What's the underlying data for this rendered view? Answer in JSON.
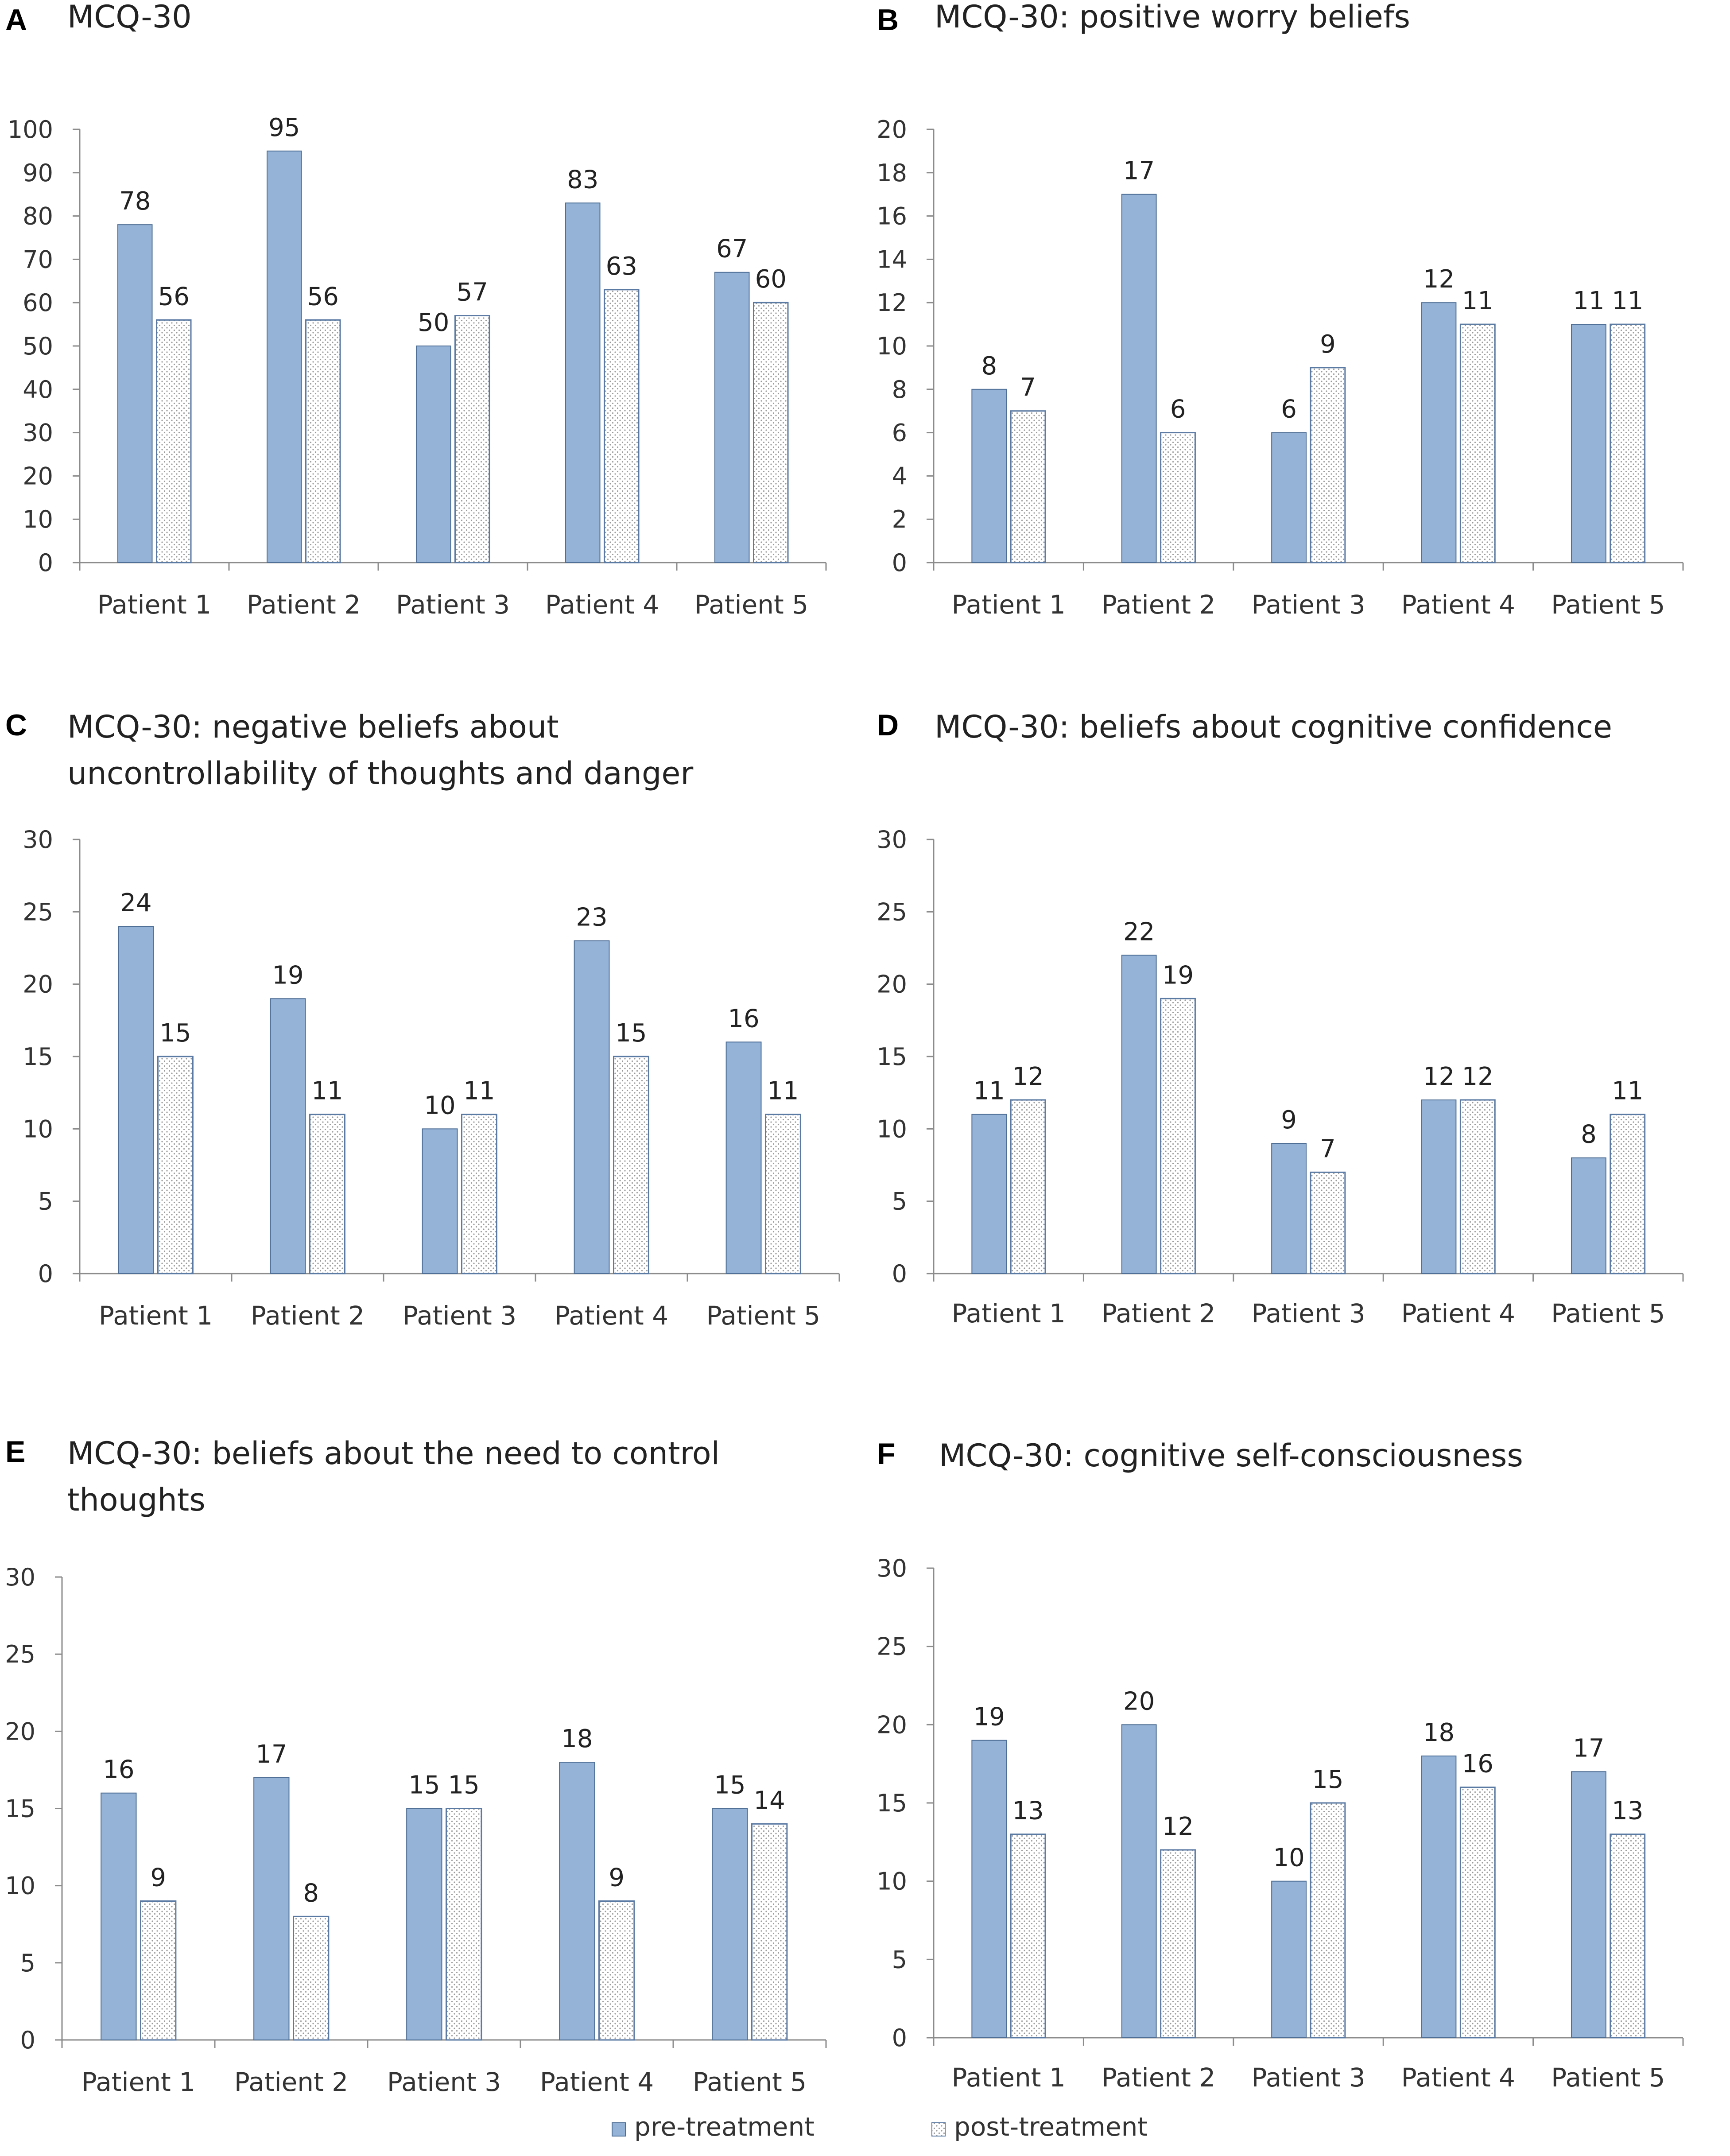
{
  "legend": {
    "pre_label": "pre-treatment",
    "post_label": "post-treatment"
  },
  "colors": {
    "pre": "#95b3d7",
    "pre_stroke": "#4f6f96",
    "post_fill": "#ffffff",
    "post_dots": "#9a9a9a",
    "post_stroke": "#5b7aa3",
    "axis": "#8c8c8c"
  },
  "chart_data": [
    {
      "panel": "A",
      "type": "bar",
      "title": [
        "MCQ-30"
      ],
      "categories": [
        "Patient 1",
        "Patient 2",
        "Patient 3",
        "Patient 4",
        "Patient 5"
      ],
      "series": [
        {
          "name": "pre-treatment",
          "values": [
            78,
            95,
            50,
            83,
            67
          ]
        },
        {
          "name": "post-treatment",
          "values": [
            56,
            56,
            57,
            63,
            60
          ]
        }
      ],
      "ylim": [
        0,
        100
      ],
      "ystep": 10,
      "ticks": [
        "0",
        "10",
        "20",
        "30",
        "40",
        "50",
        "60",
        "70",
        "80",
        "90",
        "100"
      ]
    },
    {
      "panel": "B",
      "type": "bar",
      "title": [
        "MCQ-30: positive worry beliefs"
      ],
      "categories": [
        "Patient 1",
        "Patient 2",
        "Patient 3",
        "Patient 4",
        "Patient 5"
      ],
      "series": [
        {
          "name": "pre-treatment",
          "values": [
            8,
            17,
            6,
            12,
            11
          ]
        },
        {
          "name": "post-treatment",
          "values": [
            7,
            6,
            9,
            11,
            11
          ]
        }
      ],
      "ylim": [
        0,
        20
      ],
      "ystep": 2,
      "ticks": [
        "0",
        "2",
        "4",
        "6",
        "8",
        "10",
        "12",
        "14",
        "16",
        "18",
        "20"
      ]
    },
    {
      "panel": "C",
      "type": "bar",
      "title": [
        "MCQ-30: negative beliefs about",
        "uncontrollability of thoughts and danger"
      ],
      "categories": [
        "Patient 1",
        "Patient 2",
        "Patient 3",
        "Patient 4",
        "Patient 5"
      ],
      "series": [
        {
          "name": "pre-treatment",
          "values": [
            24,
            19,
            10,
            23,
            16
          ]
        },
        {
          "name": "post-treatment",
          "values": [
            15,
            11,
            11,
            15,
            11
          ]
        }
      ],
      "ylim": [
        0,
        30
      ],
      "ystep": 5,
      "ticks": [
        "0",
        "5",
        "10",
        "15",
        "20",
        "25",
        "30"
      ]
    },
    {
      "panel": "D",
      "type": "bar",
      "title": [
        "MCQ-30: beliefs about cognitive confidence"
      ],
      "categories": [
        "Patient 1",
        "Patient 2",
        "Patient 3",
        "Patient 4",
        "Patient 5"
      ],
      "series": [
        {
          "name": "pre-treatment",
          "values": [
            11,
            22,
            9,
            12,
            8
          ]
        },
        {
          "name": "post-treatment",
          "values": [
            12,
            19,
            7,
            12,
            11
          ]
        }
      ],
      "ylim": [
        0,
        30
      ],
      "ystep": 5,
      "ticks": [
        "0",
        "5",
        "10",
        "15",
        "20",
        "25",
        "30"
      ]
    },
    {
      "panel": "E",
      "type": "bar",
      "title": [
        "MCQ-30: beliefs about the need to control",
        "thoughts"
      ],
      "categories": [
        "Patient 1",
        "Patient 2",
        "Patient 3",
        "Patient 4",
        "Patient 5"
      ],
      "series": [
        {
          "name": "pre-treatment",
          "values": [
            16,
            17,
            15,
            18,
            15
          ]
        },
        {
          "name": "post-treatment",
          "values": [
            9,
            8,
            15,
            9,
            14
          ]
        }
      ],
      "ylim": [
        0,
        30
      ],
      "ystep": 5,
      "ticks": [
        "0",
        "5",
        "10",
        "15",
        "20",
        "25",
        "30"
      ]
    },
    {
      "panel": "F",
      "type": "bar",
      "title": [
        "MCQ-30: cognitive self-consciousness"
      ],
      "categories": [
        "Patient 1",
        "Patient 2",
        "Patient 3",
        "Patient 4",
        "Patient 5"
      ],
      "series": [
        {
          "name": "pre-treatment",
          "values": [
            19,
            20,
            10,
            18,
            17
          ]
        },
        {
          "name": "post-treatment",
          "values": [
            13,
            12,
            15,
            16,
            13
          ]
        }
      ],
      "ylim": [
        0,
        30
      ],
      "ystep": 5,
      "ticks": [
        "0",
        "5",
        "10",
        "15",
        "20",
        "25",
        "30"
      ]
    }
  ]
}
